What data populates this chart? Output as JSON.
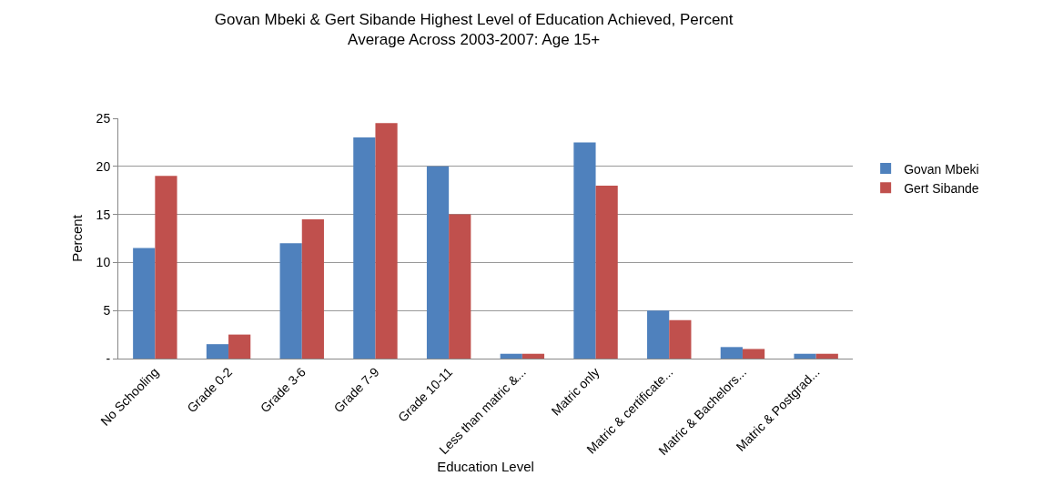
{
  "chart_data": {
    "type": "bar",
    "title": "Govan Mbeki & Gert Sibande Highest Level of Education Achieved, Percent\nAverage Across 2003-2007: Age 15+",
    "xlabel": "Education Level",
    "ylabel": "Percent",
    "categories": [
      "No Schooling",
      "Grade 0-2",
      "Grade 3-6",
      "Grade 7-9",
      "Grade 10-11",
      "Less than matric &...",
      "Matric only",
      "Matric & certificate...",
      "Matric & Bachelors...",
      "Matric & Postgrad..."
    ],
    "series": [
      {
        "name": "Govan Mbeki",
        "color": "#4f81bd",
        "values": [
          11.5,
          1.5,
          12,
          23,
          20,
          0.5,
          22.5,
          5,
          1.2,
          0.5
        ]
      },
      {
        "name": "Gert Sibande",
        "color": "#c0504d",
        "values": [
          19,
          2.5,
          14.5,
          24.5,
          15,
          0.5,
          18,
          4,
          1,
          0.5
        ]
      }
    ],
    "ylim": [
      0,
      25
    ],
    "yticks": [
      {
        "value": 0,
        "label": "-"
      },
      5,
      10,
      15,
      20,
      25
    ],
    "grid": "y",
    "legend": "right"
  }
}
